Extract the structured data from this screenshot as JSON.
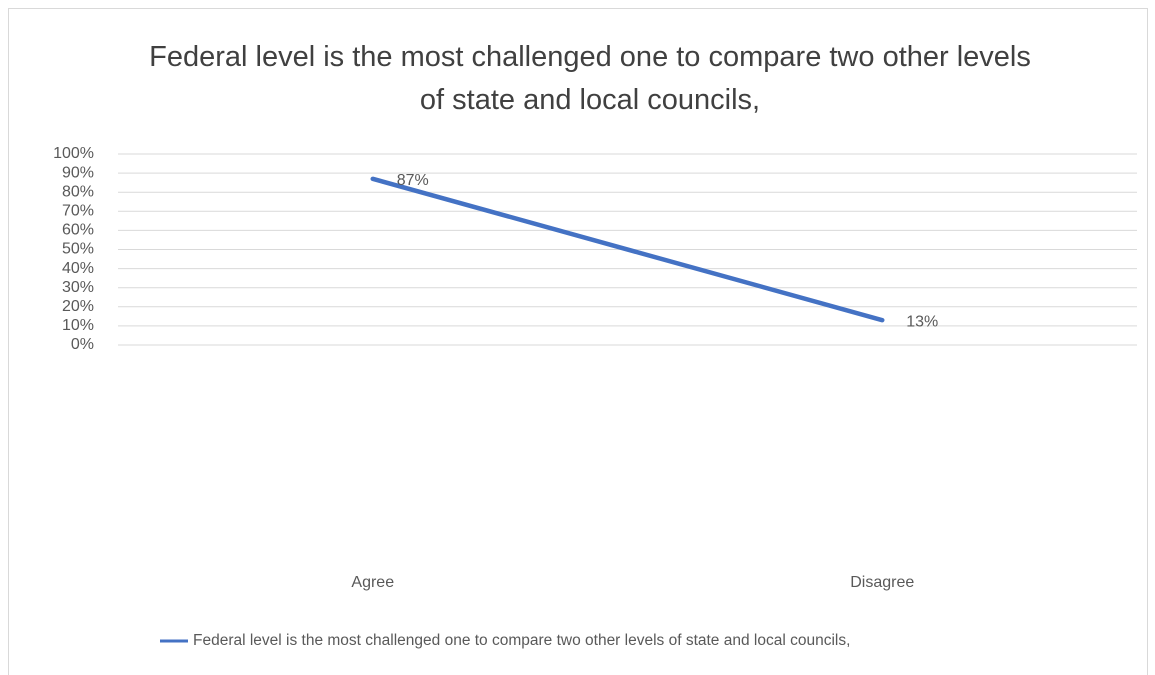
{
  "chart_data": {
    "type": "line",
    "title": "Federal level is the most challenged one to compare two other levels of state and local councils,",
    "categories": [
      "Agree",
      "Disagree"
    ],
    "series": [
      {
        "name": "Federal level is the most challenged one to compare two other levels of state and local councils,",
        "color": "#4472c4",
        "values": [
          87,
          13
        ],
        "value_labels": [
          "87%",
          "13%"
        ]
      }
    ],
    "ylim": [
      0,
      100
    ],
    "yticks": [
      {
        "value": 0,
        "label": "0%"
      },
      {
        "value": 10,
        "label": "10%"
      },
      {
        "value": 20,
        "label": "20%"
      },
      {
        "value": 30,
        "label": "30%"
      },
      {
        "value": 40,
        "label": "40%"
      },
      {
        "value": 50,
        "label": "50%"
      },
      {
        "value": 60,
        "label": "60%"
      },
      {
        "value": 70,
        "label": "70%"
      },
      {
        "value": 80,
        "label": "80%"
      },
      {
        "value": 90,
        "label": "90%"
      },
      {
        "value": 100,
        "label": "100%"
      }
    ],
    "grid": true,
    "legend": "bottom"
  }
}
